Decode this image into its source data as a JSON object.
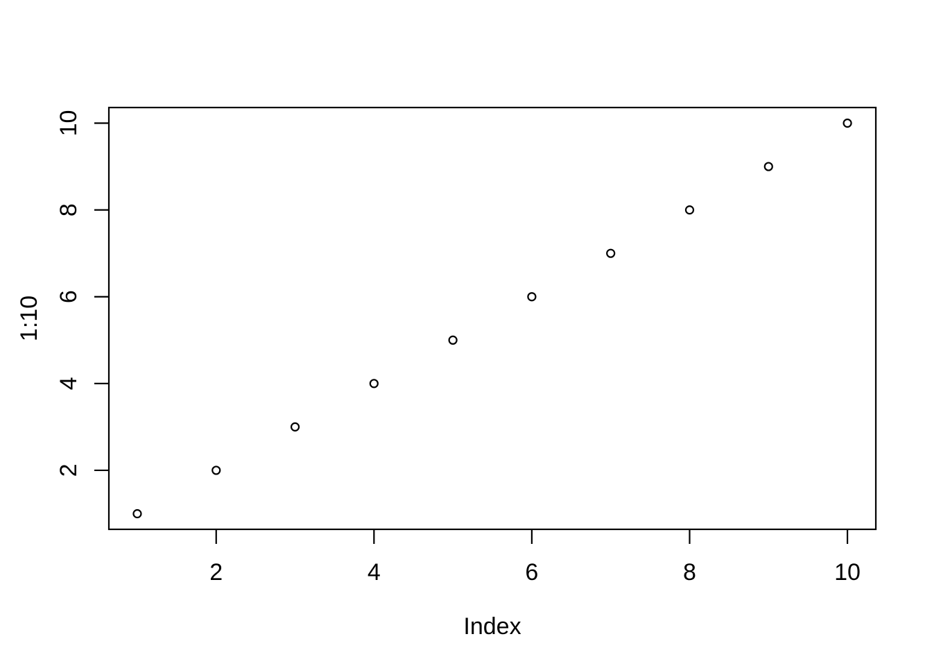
{
  "chart_data": {
    "type": "scatter",
    "title": "",
    "xlabel": "Index",
    "ylabel": "1:10",
    "x": [
      1,
      2,
      3,
      4,
      5,
      6,
      7,
      8,
      9,
      10
    ],
    "y": [
      1,
      2,
      3,
      4,
      5,
      6,
      7,
      8,
      9,
      10
    ],
    "x_ticks": [
      2,
      4,
      6,
      8,
      10
    ],
    "y_ticks": [
      2,
      4,
      6,
      8,
      10
    ],
    "xlim": [
      0.64,
      10.36
    ],
    "ylim": [
      0.64,
      10.36
    ],
    "grid": false,
    "legend": "none",
    "marker": "open-circle",
    "box": "full-rectangle",
    "colors": {
      "background": "#ffffff",
      "foreground": "#000000"
    }
  }
}
